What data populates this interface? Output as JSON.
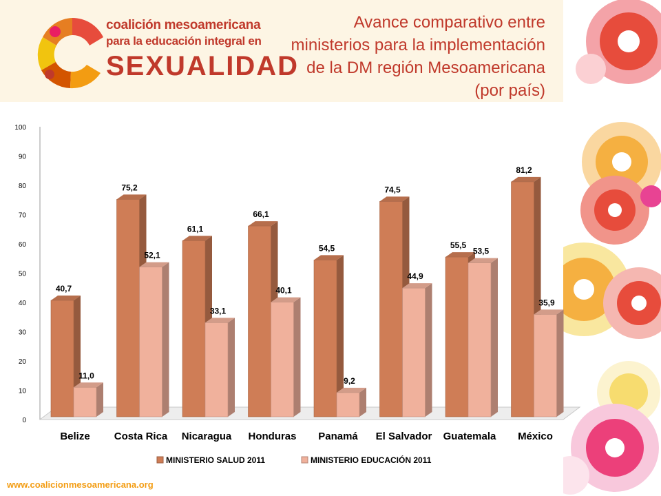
{
  "title": "Avance comparativo entre\nministerios para la implementación\nde la DM región Mesoamericana\n(por país)",
  "logo": {
    "line1": "coalición mesoamericana",
    "line2": "para la educación integral en",
    "line3": "SEXUALIDAD"
  },
  "footer": {
    "url": "www.coalicionmesoamericana.org"
  },
  "colors": {
    "series1": "#cf7d56",
    "series2": "#f0b19c",
    "title": "#c0392b",
    "footer": "#f39c12"
  },
  "chart_data": {
    "type": "bar",
    "title": "",
    "xlabel": "",
    "ylabel": "",
    "ylim": [
      0,
      100
    ],
    "yticks": [
      0,
      10,
      20,
      30,
      40,
      50,
      60,
      70,
      80,
      90,
      100
    ],
    "categories": [
      "Belize",
      "Costa Rica",
      "Nicaragua",
      "Honduras",
      "Panamá",
      "El Salvador",
      "Guatemala",
      "México"
    ],
    "series": [
      {
        "name": "MINISTERIO SALUD 2011",
        "values": [
          40.7,
          75.2,
          61.1,
          66.1,
          54.5,
          74.5,
          55.5,
          81.2
        ],
        "labels": [
          "40,7",
          "75,2",
          "61,1",
          "66,1",
          "54,5",
          "74,5",
          "55,5",
          "81,2"
        ]
      },
      {
        "name": "MINISTERIO EDUCACIÓN 2011",
        "values": [
          11.0,
          52.1,
          33.1,
          40.1,
          9.2,
          44.9,
          53.5,
          35.9
        ],
        "labels": [
          "11,0",
          "52,1",
          "33,1",
          "40,1",
          "9,2",
          "44,9",
          "53,5",
          "35,9"
        ]
      }
    ],
    "legend": "bottom",
    "grid": false
  }
}
